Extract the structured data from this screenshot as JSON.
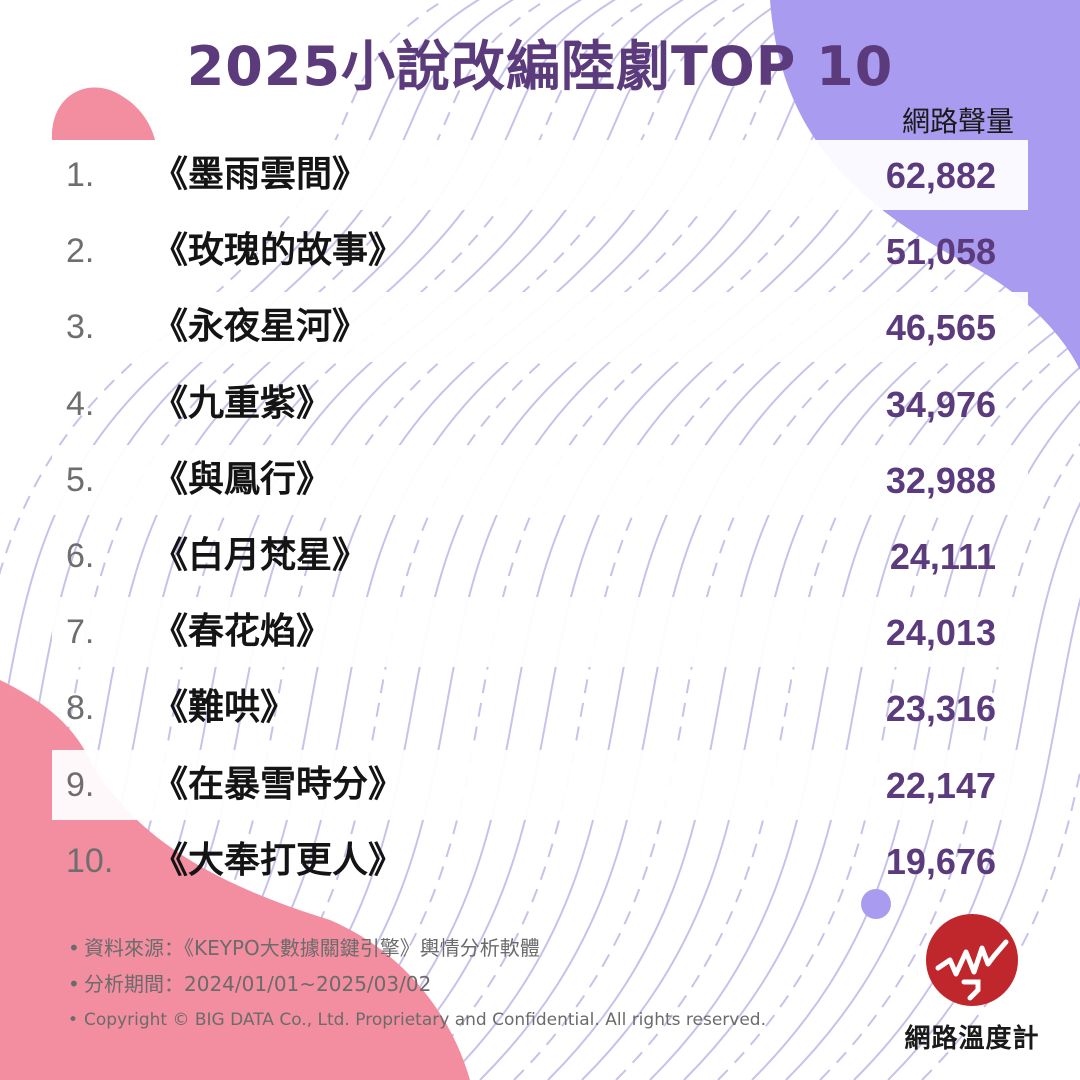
{
  "colors": {
    "title": "#5b3b7c",
    "value": "#5b3b7c",
    "lavender": "#a99cf0",
    "pink": "#f28ea0",
    "line": "#c6c2ea",
    "logo": "#c0272d"
  },
  "title": "2025小說改編陸劇TOP 10",
  "column_header": "網路聲量",
  "chart_data": {
    "type": "table",
    "title": "2025小說改編陸劇TOP 10",
    "columns": [
      "",
      "",
      "網路聲量"
    ],
    "rows": [
      {
        "rank": "1.",
        "name": "《墨雨雲間》",
        "value": "62,882"
      },
      {
        "rank": "2.",
        "name": "《玫瑰的故事》",
        "value": "51,058"
      },
      {
        "rank": "3.",
        "name": "《永夜星河》",
        "value": "46,565"
      },
      {
        "rank": "4.",
        "name": "《九重紫》",
        "value": "34,976"
      },
      {
        "rank": "5.",
        "name": "《與鳳行》",
        "value": "32,988"
      },
      {
        "rank": "6.",
        "name": "《白月梵星》",
        "value": "24,111"
      },
      {
        "rank": "7.",
        "name": "《春花焰》",
        "value": "24,013"
      },
      {
        "rank": "8.",
        "name": "《難哄》",
        "value": "23,316"
      },
      {
        "rank": "9.",
        "name": "《在暴雪時分》",
        "value": "22,147"
      },
      {
        "rank": "10.",
        "name": "《大奉打更人》",
        "value": "19,676"
      }
    ]
  },
  "footer": {
    "bullet": "•",
    "source": "資料來源：《KEYPO大數據關鍵引擎》輿情分析軟體",
    "period": "分析期間：2024/01/01~2025/03/02",
    "copyright": "Copyright © BIG DATA Co., Ltd. Proprietary and Confidential. All rights reserved."
  },
  "logo": {
    "name": "網路溫度計",
    "icon": "pulse-line-icon"
  }
}
